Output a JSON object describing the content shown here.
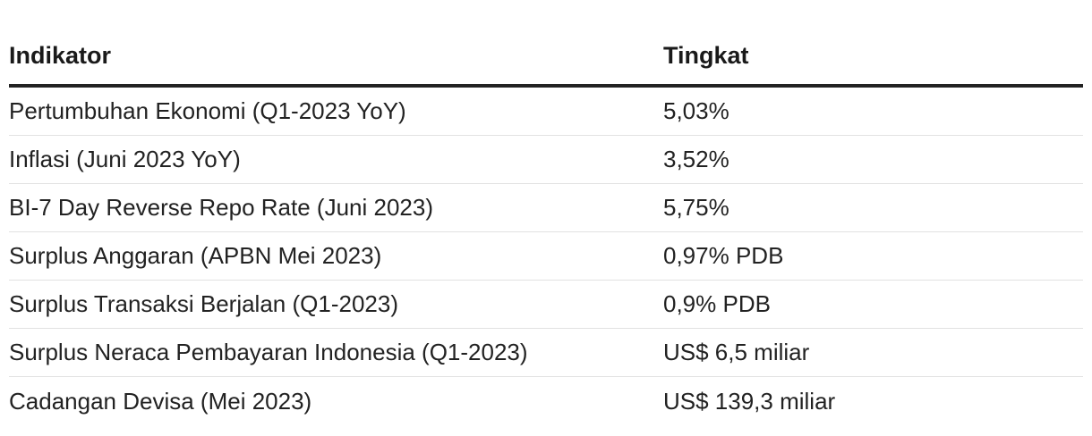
{
  "table": {
    "headers": [
      "Indikator",
      "Tingkat"
    ],
    "rows": [
      [
        "Pertumbuhan Ekonomi (Q1-2023 YoY)",
        "5,03%"
      ],
      [
        "Inflasi (Juni 2023 YoY)",
        "3,52%"
      ],
      [
        "BI-7 Day Reverse Repo Rate (Juni 2023)",
        "5,75%"
      ],
      [
        "Surplus Anggaran (APBN Mei 2023)",
        "0,97% PDB"
      ],
      [
        "Surplus Transaksi Berjalan (Q1-2023)",
        "0,9% PDB"
      ],
      [
        "Surplus Neraca Pembayaran Indonesia (Q1-2023)",
        "US$ 6,5 miliar"
      ],
      [
        "Cadangan Devisa (Mei 2023)",
        "US$ 139,3 miliar"
      ]
    ]
  }
}
